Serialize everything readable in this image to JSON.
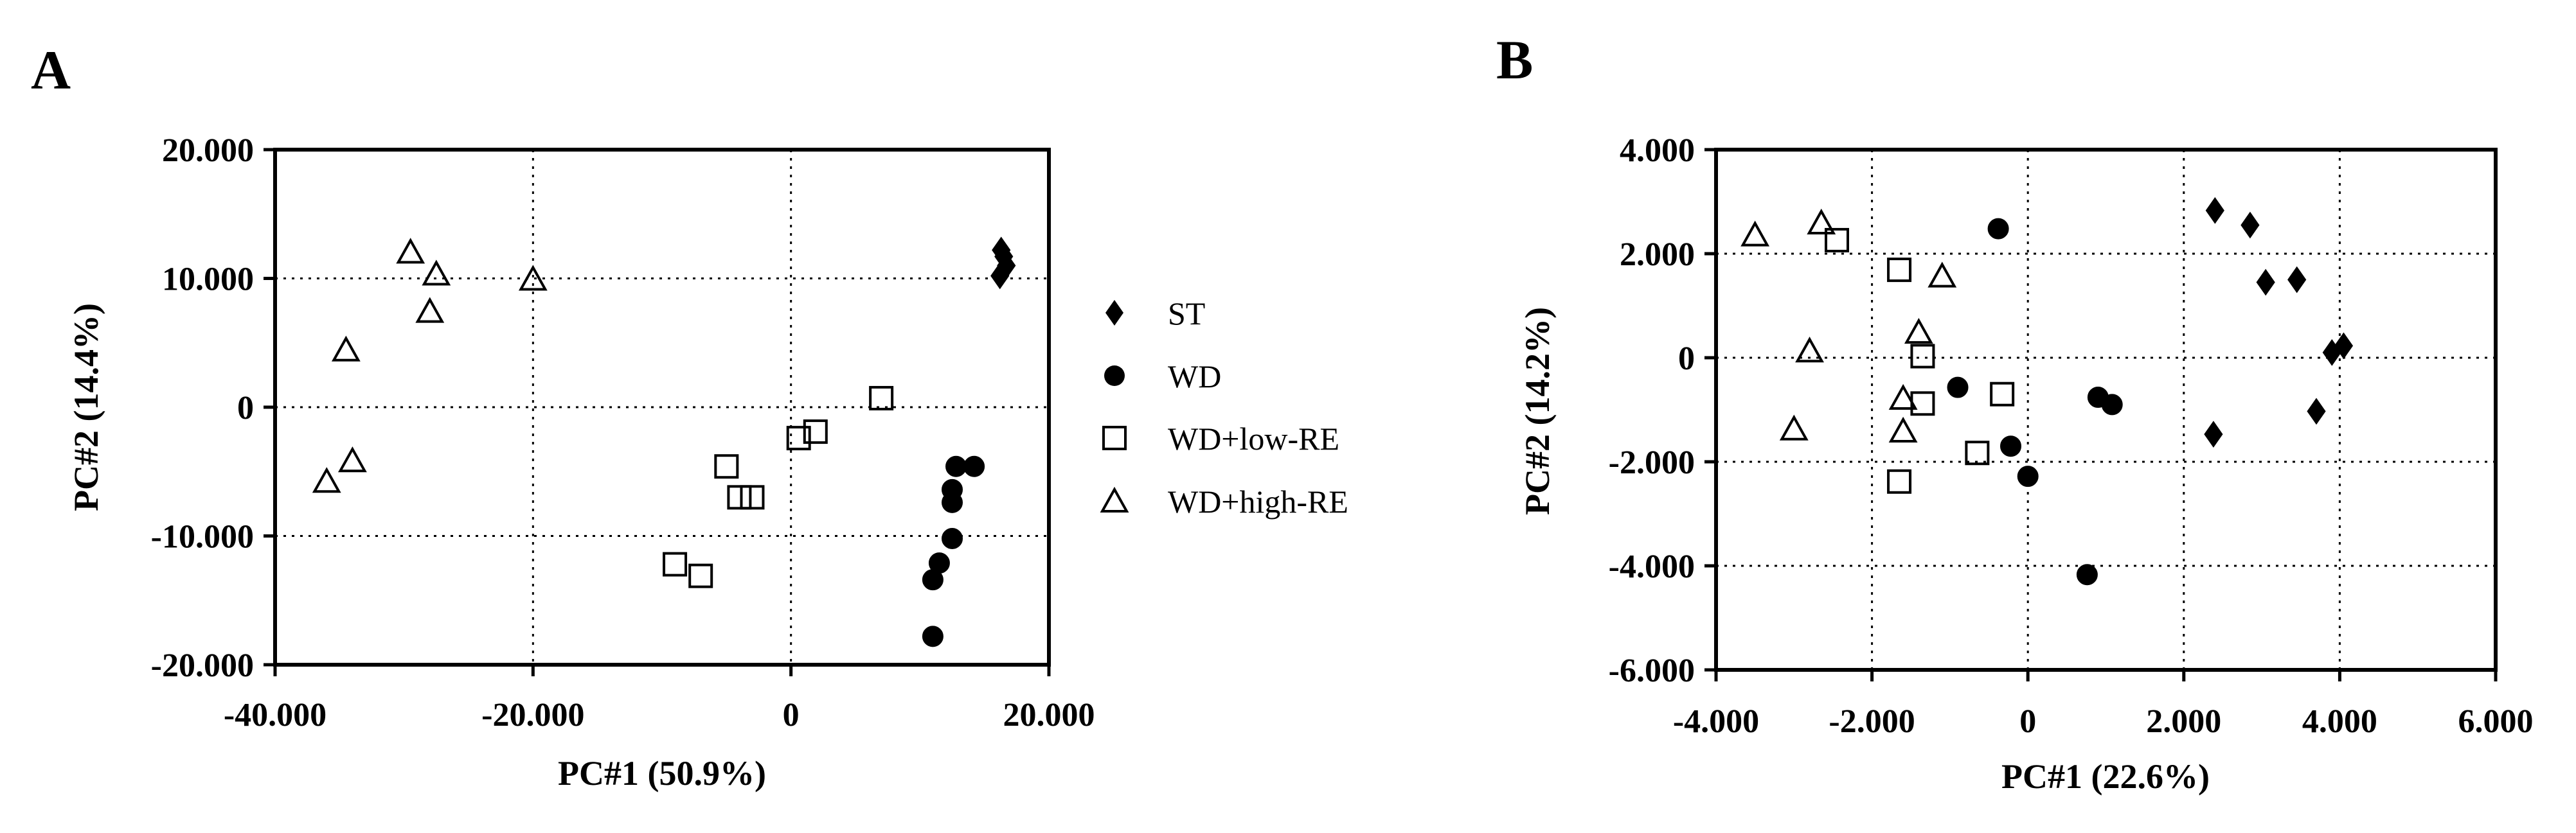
{
  "figure": {
    "background": "#ffffff",
    "ink": "#000000"
  },
  "legend": {
    "items": [
      {
        "label": "ST",
        "marker": "diamond",
        "fill": "#000000"
      },
      {
        "label": "WD",
        "marker": "circle",
        "fill": "#000000"
      },
      {
        "label": "WD+low-RE",
        "marker": "square",
        "fill": "none"
      },
      {
        "label": "WD+high-RE",
        "marker": "triangle",
        "fill": "none"
      }
    ]
  },
  "chart_data": [
    {
      "type": "scatter",
      "panel": "A",
      "xlabel": "PC#1 (50.9%)",
      "ylabel": "PC#2 (14.4%)",
      "xlim": [
        -40000,
        20000
      ],
      "ylim": [
        -20000,
        20000
      ],
      "xticks": [
        -40000,
        -20000,
        0,
        20000
      ],
      "yticks": [
        -20000,
        -10000,
        0,
        10000,
        20000
      ],
      "xtick_labels": [
        "-40.000",
        "-20.000",
        "0",
        "20.000"
      ],
      "ytick_labels": [
        "-20.000",
        "-10.000",
        "0",
        "10.000",
        "20.000"
      ],
      "grid": true,
      "series": [
        {
          "name": "ST",
          "points": [
            [
              16200,
              10200
            ],
            [
              16700,
              11000
            ],
            [
              16500,
              11700
            ],
            [
              16300,
              12200
            ]
          ]
        },
        {
          "name": "WD",
          "points": [
            [
              11000,
              -17800
            ],
            [
              11000,
              -13400
            ],
            [
              11500,
              -12100
            ],
            [
              12500,
              -10200
            ],
            [
              12500,
              -7400
            ],
            [
              12500,
              -6400
            ],
            [
              12800,
              -4600
            ],
            [
              14200,
              -4600
            ]
          ]
        },
        {
          "name": "WD+low-RE",
          "points": [
            [
              -9000,
              -12200
            ],
            [
              -7000,
              -13100
            ],
            [
              -5000,
              -4600
            ],
            [
              -4000,
              -7000
            ],
            [
              -3000,
              -7000
            ],
            [
              600,
              -2400
            ],
            [
              1900,
              -1900
            ],
            [
              7000,
              700
            ]
          ]
        },
        {
          "name": "WD+high-RE",
          "points": [
            [
              -36000,
              -5800
            ],
            [
              -34000,
              -4200
            ],
            [
              -34500,
              4400
            ],
            [
              -29500,
              12000
            ],
            [
              -28000,
              7400
            ],
            [
              -27500,
              10300
            ],
            [
              -20000,
              9900
            ]
          ]
        }
      ]
    },
    {
      "type": "scatter",
      "panel": "B",
      "xlabel": "PC#1 (22.6%)",
      "ylabel": "PC#2 (14.2%)",
      "xlim": [
        -4000,
        6000
      ],
      "ylim": [
        -6000,
        4000
      ],
      "xticks": [
        -4000,
        -2000,
        0,
        2000,
        4000,
        6000
      ],
      "yticks": [
        -6000,
        -4000,
        -2000,
        0,
        2000,
        4000
      ],
      "xtick_labels": [
        "-4.000",
        "-2.000",
        "0",
        "2.000",
        "4.000",
        "6.000"
      ],
      "ytick_labels": [
        "-6.000",
        "-4.000",
        "-2.000",
        "0",
        "2.000",
        "4.000"
      ],
      "grid": true,
      "series": [
        {
          "name": "ST",
          "points": [
            [
              2400,
              2830
            ],
            [
              2850,
              2550
            ],
            [
              3050,
              1450
            ],
            [
              3450,
              1500
            ],
            [
              3700,
              -1030
            ],
            [
              3900,
              100
            ],
            [
              4050,
              230
            ],
            [
              2380,
              -1470
            ]
          ]
        },
        {
          "name": "WD",
          "points": [
            [
              -380,
              2480
            ],
            [
              -900,
              -570
            ],
            [
              -220,
              -1700
            ],
            [
              0,
              -2280
            ],
            [
              900,
              -760
            ],
            [
              1080,
              -900
            ],
            [
              760,
              -4170
            ]
          ]
        },
        {
          "name": "WD+low-RE",
          "points": [
            [
              -2450,
              2260
            ],
            [
              -1650,
              1690
            ],
            [
              -1350,
              30
            ],
            [
              -1350,
              -880
            ],
            [
              -330,
              -700
            ],
            [
              -650,
              -1830
            ],
            [
              -1650,
              -2380
            ]
          ]
        },
        {
          "name": "WD+high-RE",
          "points": [
            [
              -3500,
              2350
            ],
            [
              -2650,
              2580
            ],
            [
              -1100,
              1560
            ],
            [
              -1400,
              480
            ],
            [
              -2800,
              120
            ],
            [
              -1600,
              -790
            ],
            [
              -1600,
              -1420
            ],
            [
              -3000,
              -1380
            ]
          ]
        }
      ]
    }
  ],
  "panels": {
    "A": {
      "letter": "A"
    },
    "B": {
      "letter": "B"
    }
  }
}
